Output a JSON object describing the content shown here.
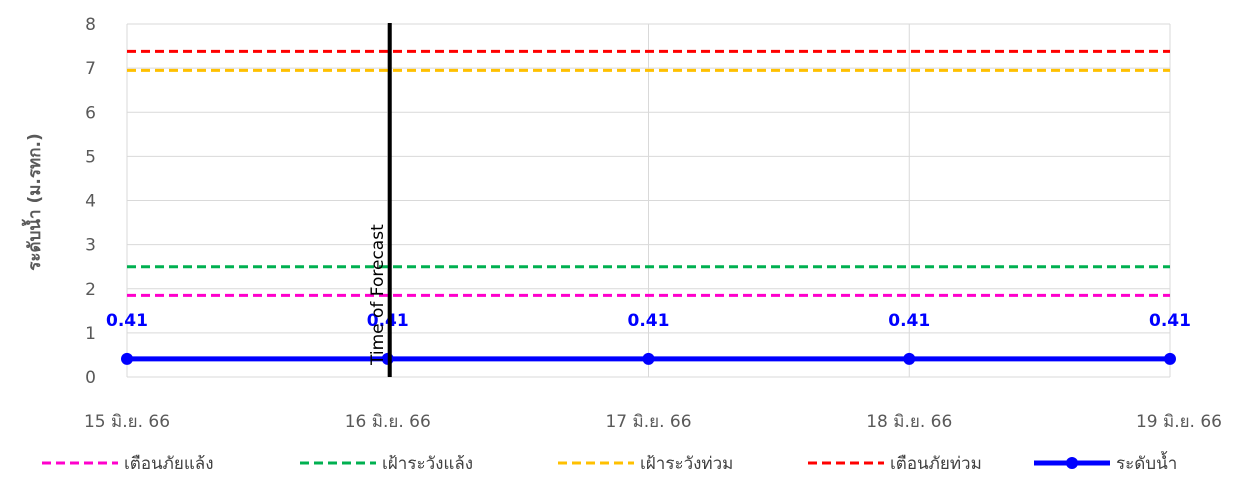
{
  "chart_data": {
    "type": "line",
    "ylabel": "ระดับน้ำ (ม.รทก.)",
    "xlabel": "",
    "categories": [
      "15 มิ.ย. 66",
      "16 มิ.ย. 66",
      "17 มิ.ย. 66",
      "18 มิ.ย. 66",
      "19 มิ.ย. 66"
    ],
    "ylim": [
      0,
      8
    ],
    "yticks": [
      "0",
      "1",
      "2",
      "3",
      "4",
      "5",
      "6",
      "7",
      "8"
    ],
    "grid": true,
    "legend_position": "bottom",
    "series": [
      {
        "name": "เตือนภัยแล้ง",
        "values": [
          1.85,
          1.85,
          1.85,
          1.85,
          1.85
        ],
        "color": "#ff00cc",
        "style": "dashed"
      },
      {
        "name": "เฝ้าระวังแล้ง",
        "values": [
          2.5,
          2.5,
          2.5,
          2.5,
          2.5
        ],
        "color": "#00b050",
        "style": "dashed"
      },
      {
        "name": "เฝ้าระวังท่วม",
        "values": [
          6.95,
          6.95,
          6.95,
          6.95,
          6.95
        ],
        "color": "#ffc000",
        "style": "dashed"
      },
      {
        "name": "เตือนภัยท่วม",
        "values": [
          7.38,
          7.38,
          7.38,
          7.38,
          7.38
        ],
        "color": "#ff0000",
        "style": "dashed"
      },
      {
        "name": "ระดับน้ำ",
        "values": [
          0.41,
          0.41,
          0.41,
          0.41,
          0.41
        ],
        "color": "#0000ff",
        "style": "solid-marker",
        "data_labels": [
          "0.41",
          "0.41",
          "0.41",
          "0.41",
          "0.41"
        ]
      }
    ],
    "annotations": [
      {
        "text": "Time of Forecast",
        "x": "16 มิ.ย. 66",
        "color": "#000000"
      }
    ]
  }
}
